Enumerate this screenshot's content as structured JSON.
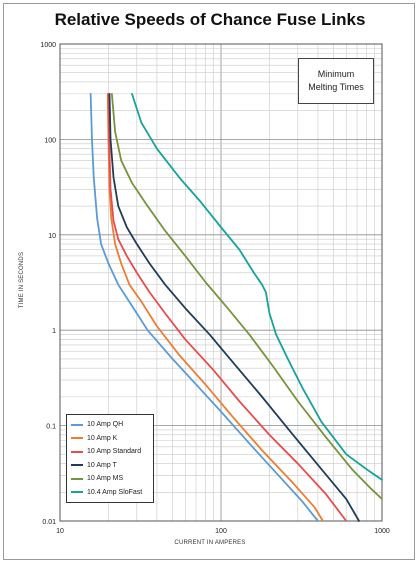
{
  "chart_data": {
    "type": "line",
    "title": "Relative Speeds of Chance Fuse Links",
    "annotation": "Minimum Melting Times",
    "xlabel": "CURRENT IN AMPERES",
    "ylabel": "TIME IN SECONDS",
    "x_scale": "log",
    "y_scale": "log",
    "xlim": [
      10,
      1000
    ],
    "ylim": [
      0.01,
      1000
    ],
    "x_ticks": [
      "10",
      "100",
      "1000"
    ],
    "y_ticks": [
      "1000",
      "100",
      "10",
      "1",
      "0.1",
      "0.01"
    ],
    "grid": true,
    "legend_position": "bottom-left",
    "series": [
      {
        "name": "10 Amp QH",
        "color": "#5b9bd5",
        "points": [
          [
            15.5,
            300
          ],
          [
            15.8,
            100
          ],
          [
            16.2,
            40
          ],
          [
            17.0,
            15
          ],
          [
            18.0,
            8
          ],
          [
            20.0,
            5
          ],
          [
            23.0,
            3
          ],
          [
            28.0,
            1.8
          ],
          [
            35.0,
            1.0
          ],
          [
            50.0,
            0.5
          ],
          [
            70.0,
            0.27
          ],
          [
            100.0,
            0.14
          ],
          [
            150.0,
            0.065
          ],
          [
            220.0,
            0.032
          ],
          [
            320.0,
            0.016
          ],
          [
            400.0,
            0.01
          ]
        ]
      },
      {
        "name": "10 Amp K",
        "color": "#ed7d31",
        "points": [
          [
            19.8,
            300
          ],
          [
            20.0,
            100
          ],
          [
            20.3,
            30
          ],
          [
            20.8,
            15
          ],
          [
            22.0,
            8
          ],
          [
            24.0,
            5
          ],
          [
            27.0,
            3
          ],
          [
            32.0,
            2
          ],
          [
            40.0,
            1.1
          ],
          [
            55.0,
            0.55
          ],
          [
            80.0,
            0.27
          ],
          [
            120.0,
            0.12
          ],
          [
            180.0,
            0.055
          ],
          [
            280.0,
            0.025
          ],
          [
            380.0,
            0.014
          ],
          [
            430.0,
            0.01
          ]
        ]
      },
      {
        "name": "10 Amp Standard",
        "color": "#e84c4c",
        "points": [
          [
            20.0,
            300
          ],
          [
            20.2,
            100
          ],
          [
            20.6,
            30
          ],
          [
            21.5,
            14
          ],
          [
            23.0,
            9
          ],
          [
            26.0,
            6
          ],
          [
            30.0,
            4
          ],
          [
            36.0,
            2.5
          ],
          [
            45.0,
            1.5
          ],
          [
            60.0,
            0.8
          ],
          [
            90.0,
            0.38
          ],
          [
            130.0,
            0.18
          ],
          [
            200.0,
            0.08
          ],
          [
            300.0,
            0.04
          ],
          [
            450.0,
            0.019
          ],
          [
            600.0,
            0.01
          ]
        ]
      },
      {
        "name": "10 Amp T",
        "color": "#1f3d58",
        "points": [
          [
            20.3,
            300
          ],
          [
            20.6,
            100
          ],
          [
            21.5,
            40
          ],
          [
            23.0,
            20
          ],
          [
            26.0,
            12
          ],
          [
            30.0,
            8
          ],
          [
            36.0,
            5
          ],
          [
            45.0,
            3
          ],
          [
            60.0,
            1.7
          ],
          [
            85.0,
            0.9
          ],
          [
            120.0,
            0.45
          ],
          [
            180.0,
            0.2
          ],
          [
            280.0,
            0.08
          ],
          [
            420.0,
            0.035
          ],
          [
            600.0,
            0.017
          ],
          [
            720.0,
            0.01
          ]
        ]
      },
      {
        "name": "10 Amp MS",
        "color": "#77933c",
        "points": [
          [
            21.0,
            300
          ],
          [
            22.0,
            120
          ],
          [
            24.0,
            60
          ],
          [
            28.0,
            35
          ],
          [
            35.0,
            20
          ],
          [
            45.0,
            11
          ],
          [
            60.0,
            6
          ],
          [
            80.0,
            3.2
          ],
          [
            110.0,
            1.7
          ],
          [
            150.0,
            0.9
          ],
          [
            210.0,
            0.42
          ],
          [
            300.0,
            0.18
          ],
          [
            450.0,
            0.075
          ],
          [
            650.0,
            0.035
          ],
          [
            850.0,
            0.022
          ],
          [
            1000.0,
            0.017
          ]
        ]
      },
      {
        "name": "10.4 Amp SloFast",
        "color": "#17a398",
        "points": [
          [
            28.0,
            300
          ],
          [
            32.0,
            150
          ],
          [
            40.0,
            80
          ],
          [
            55.0,
            40
          ],
          [
            75.0,
            22
          ],
          [
            100.0,
            12
          ],
          [
            130.0,
            7
          ],
          [
            160.0,
            4
          ],
          [
            180.0,
            3
          ],
          [
            190.0,
            2.5
          ],
          [
            200.0,
            1.5
          ],
          [
            220.0,
            0.9
          ],
          [
            260.0,
            0.5
          ],
          [
            320.0,
            0.25
          ],
          [
            420.0,
            0.11
          ],
          [
            600.0,
            0.05
          ],
          [
            800.0,
            0.035
          ],
          [
            1000.0,
            0.027
          ]
        ]
      }
    ]
  }
}
